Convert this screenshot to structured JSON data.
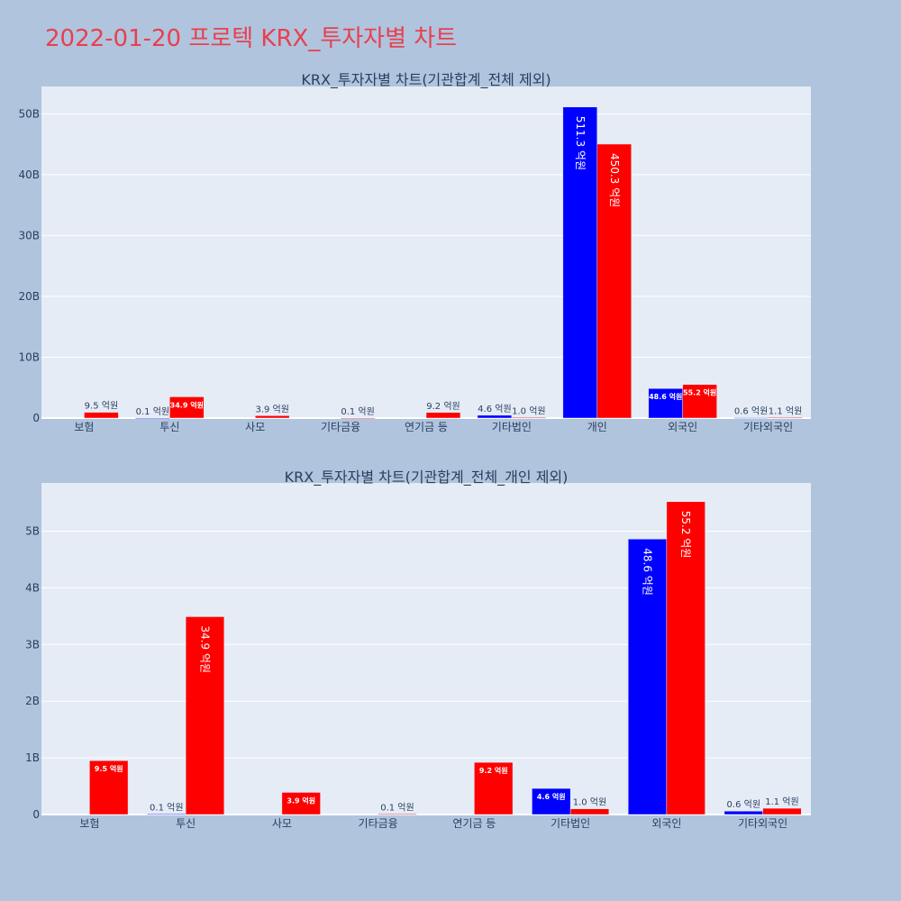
{
  "page": {
    "title": "2022-01-20 프로텍 KRX_투자자별 차트"
  },
  "colors": {
    "background": "#b0c4de",
    "plot_bg": "#e5ecf6",
    "buy": "#0000ff",
    "sell": "#ff0000",
    "title": "#e8404f"
  },
  "chart_data": [
    {
      "type": "bar",
      "title": "KRX_투자자별 차트(기관합계_전체 제외)",
      "categories": [
        "보험",
        "투신",
        "사모",
        "기타금융",
        "연기금 등",
        "기타법인",
        "개인",
        "외국인",
        "기타외국인"
      ],
      "y_tick_labels": [
        "0",
        "10B",
        "20B",
        "30B",
        "40B",
        "50B"
      ],
      "y_ticks": [
        0,
        10000000000,
        20000000000,
        30000000000,
        40000000000,
        50000000000
      ],
      "ylim": [
        0,
        54500000000
      ],
      "grid": true,
      "series": [
        {
          "color": "#0000ff",
          "values": [
            0,
            10000000,
            0,
            0,
            0,
            460000000,
            51130000000,
            4860000000,
            60000000
          ],
          "labels": [
            "",
            "0.1 억원",
            "",
            "",
            "",
            "4.6 억원",
            "511.3 억원",
            "48.6 억원",
            "0.6 억원"
          ]
        },
        {
          "color": "#ff0000",
          "values": [
            950000000,
            3490000000,
            390000000,
            10000000,
            920000000,
            100000000,
            45030000000,
            5520000000,
            110000000
          ],
          "labels": [
            "9.5 억원",
            "34.9 억원",
            "3.9 억원",
            "0.1 억원",
            "9.2 억원",
            "1.0 억원",
            "450.3 억원",
            "55.2 억원",
            "1.1 억원"
          ]
        }
      ]
    },
    {
      "type": "bar",
      "title": "KRX_투자자별 차트(기관합계_전체_개인 제외)",
      "categories": [
        "보험",
        "투신",
        "사모",
        "기타금융",
        "연기금 등",
        "기타법인",
        "외국인",
        "기타외국인"
      ],
      "y_tick_labels": [
        "0",
        "1B",
        "2B",
        "3B",
        "4B",
        "5B"
      ],
      "y_ticks": [
        0,
        1000000000,
        2000000000,
        3000000000,
        4000000000,
        5000000000
      ],
      "ylim": [
        0,
        5850000000
      ],
      "grid": true,
      "series": [
        {
          "color": "#0000ff",
          "values": [
            0,
            10000000,
            0,
            0,
            0,
            460000000,
            4860000000,
            60000000
          ],
          "labels": [
            "",
            "0.1 억원",
            "",
            "",
            "",
            "4.6 억원",
            "48.6 억원",
            "0.6 억원"
          ]
        },
        {
          "color": "#ff0000",
          "values": [
            950000000,
            3490000000,
            390000000,
            10000000,
            920000000,
            100000000,
            5520000000,
            110000000
          ],
          "labels": [
            "9.5 억원",
            "34.9 억원",
            "3.9 억원",
            "0.1 억원",
            "9.2 억원",
            "1.0 억원",
            "55.2 억원",
            "1.1 억원"
          ]
        }
      ]
    }
  ]
}
